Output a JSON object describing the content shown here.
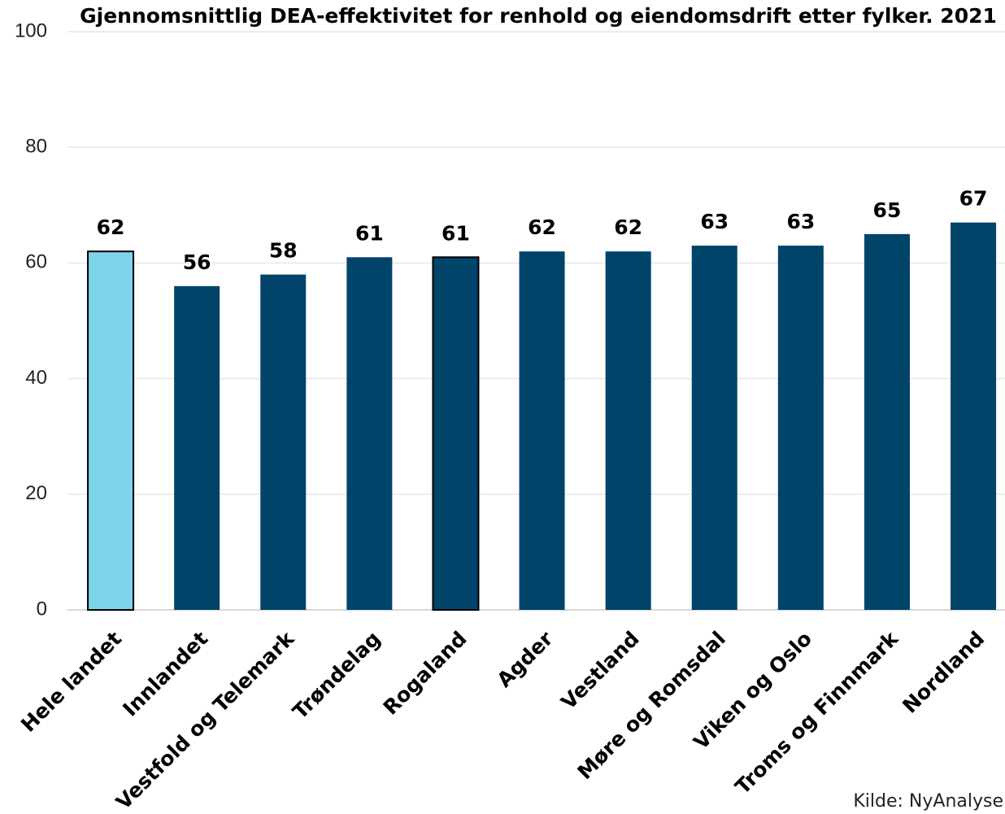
{
  "chart_data": {
    "type": "bar",
    "title": "Gjennomsnittlig DEA-effektivitet for renhold og eiendomsdrift etter fylker. 2021",
    "categories": [
      "Hele landet",
      "Innlandet",
      "Vestfold og Telemark",
      "Trøndelag",
      "Rogaland",
      "Agder",
      "Vestland",
      "Møre og Romsdal",
      "Viken og Oslo",
      "Troms og Finnmark",
      "Nordland"
    ],
    "values": [
      62,
      56,
      58,
      61,
      61,
      62,
      62,
      63,
      63,
      65,
      67
    ],
    "colors": [
      "#7fd4e9",
      "#00446a",
      "#00446a",
      "#00446a",
      "#00446a",
      "#00446a",
      "#00446a",
      "#00446a",
      "#00446a",
      "#00446a",
      "#00446a"
    ],
    "edge_colors": [
      "#000000",
      null,
      null,
      null,
      "#000000",
      null,
      null,
      null,
      null,
      null,
      null
    ],
    "ylim": [
      0,
      100
    ],
    "yticks": [
      0,
      20,
      40,
      60,
      80,
      100
    ],
    "grid": true,
    "source": "Kilde: NyAnalyse"
  }
}
